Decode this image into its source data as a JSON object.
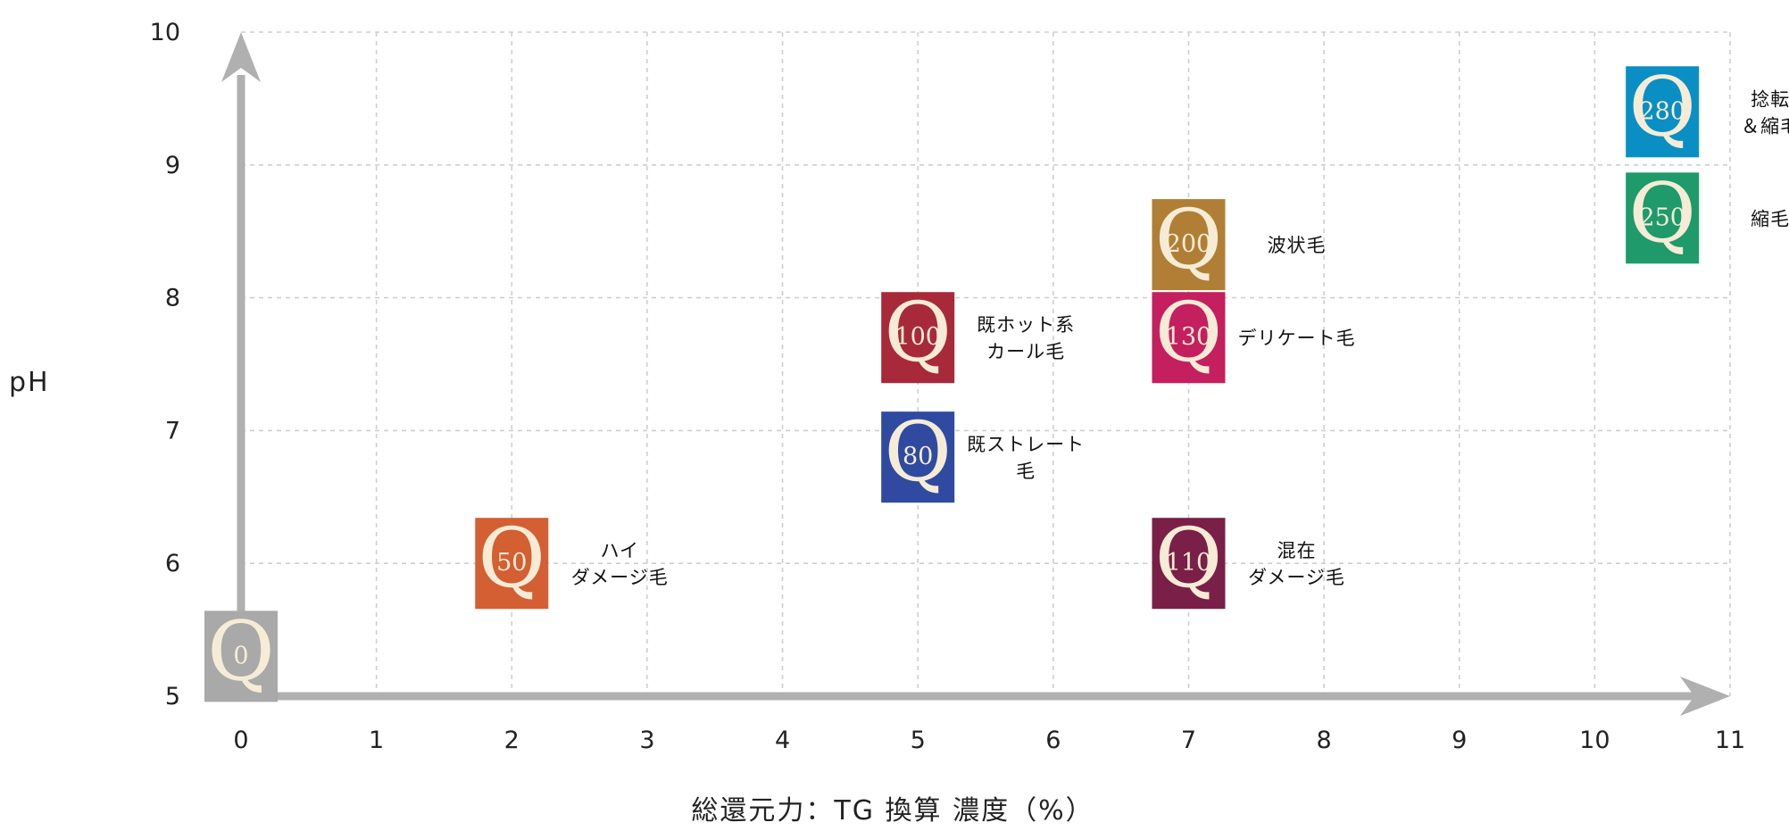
{
  "chart_data": {
    "type": "scatter",
    "title": "",
    "xlabel": "総還元力：TG 換算 濃度（%）",
    "ylabel": "pH",
    "xlim": [
      0,
      11
    ],
    "ylim": [
      5,
      10
    ],
    "x_ticks": [
      "0",
      "1",
      "2",
      "3",
      "4",
      "5",
      "6",
      "7",
      "8",
      "9",
      "10",
      "11"
    ],
    "y_ticks": [
      "5",
      "6",
      "7",
      "8",
      "9",
      "10"
    ],
    "grid": true,
    "points": [
      {
        "product": "0",
        "x": 0,
        "y": 5.3,
        "color": "#a9a9a9",
        "label": []
      },
      {
        "product": "50",
        "x": 2,
        "y": 6.0,
        "color": "#d35f33",
        "label": [
          "ハイ",
          "ダメージ毛"
        ]
      },
      {
        "product": "80",
        "x": 5,
        "y": 6.8,
        "color": "#2f4aa0",
        "label": [
          "既ストレート",
          "毛"
        ]
      },
      {
        "product": "100",
        "x": 5,
        "y": 7.7,
        "color": "#a8293a",
        "label": [
          "既ホット系",
          "カール毛"
        ]
      },
      {
        "product": "110",
        "x": 7,
        "y": 6.0,
        "color": "#7a1f48",
        "label": [
          "混在",
          "ダメージ毛"
        ]
      },
      {
        "product": "130",
        "x": 7,
        "y": 7.7,
        "color": "#c41f5f",
        "label": [
          "デリケート毛"
        ]
      },
      {
        "product": "200",
        "x": 7,
        "y": 8.4,
        "color": "#b07f35",
        "label": [
          "波状毛"
        ]
      },
      {
        "product": "250",
        "x": 10.5,
        "y": 8.6,
        "color": "#1e9a6b",
        "label": [
          "縮毛"
        ]
      },
      {
        "product": "280",
        "x": 10.5,
        "y": 9.4,
        "color": "#0a8fc4",
        "label": [
          "捻転",
          "＆縮毛"
        ]
      }
    ]
  },
  "q_letter": "Q"
}
